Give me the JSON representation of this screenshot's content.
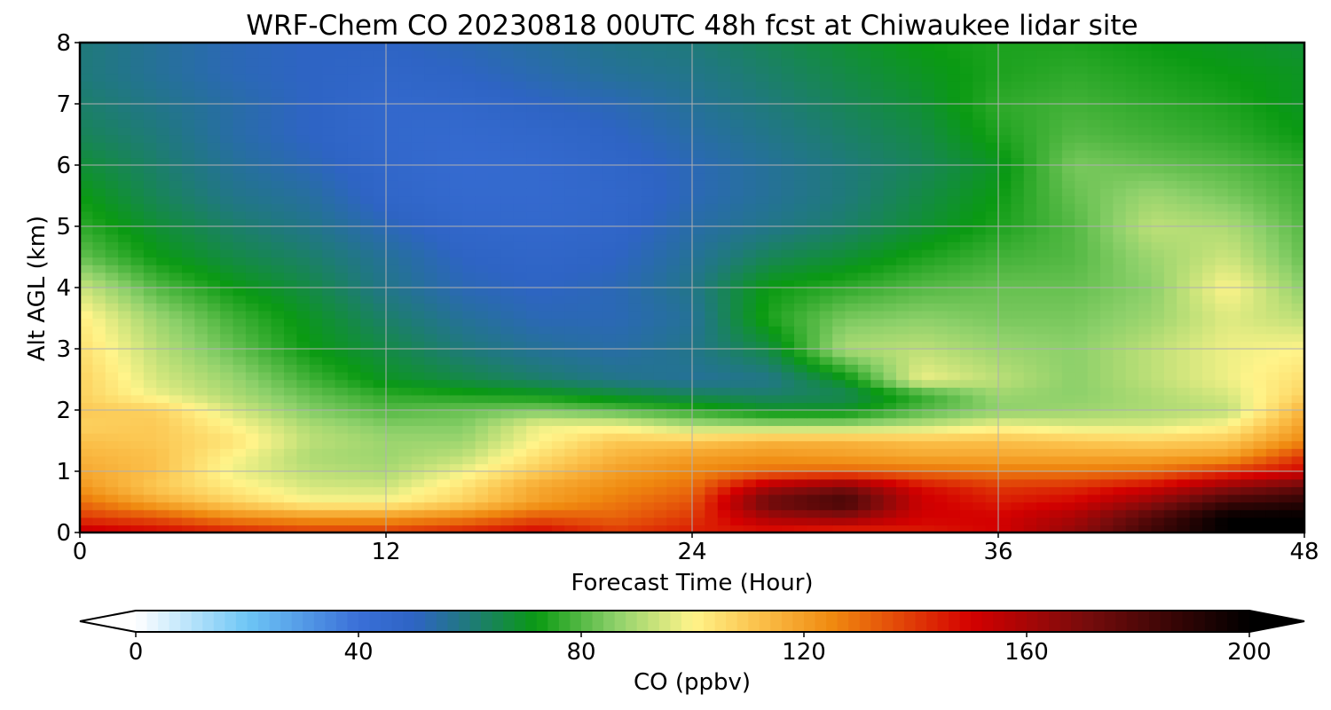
{
  "chart_data": {
    "type": "heatmap",
    "title": "WRF-Chem CO  20230818 00UTC 48h fcst at Chiwaukee lidar site",
    "xlabel": "Forecast Time (Hour)",
    "ylabel": "Alt AGL (km)",
    "xlim": [
      0,
      48
    ],
    "ylim": [
      0,
      8
    ],
    "xticks": [
      0,
      12,
      24,
      36,
      48
    ],
    "yticks": [
      0,
      1,
      2,
      3,
      4,
      5,
      6,
      7,
      8
    ],
    "grid": true,
    "colorbar": {
      "label": "CO  (ppbv)",
      "range": [
        0,
        200
      ],
      "ticks": [
        0,
        40,
        80,
        120,
        160,
        200
      ],
      "extend": "both",
      "orientation": "horizontal",
      "stops": [
        {
          "v": 0,
          "c": "#ffffff"
        },
        {
          "v": 20,
          "c": "#6ec6f5"
        },
        {
          "v": 40,
          "c": "#3a6fd8"
        },
        {
          "v": 50,
          "c": "#2e64c4"
        },
        {
          "v": 60,
          "c": "#1f7a7a"
        },
        {
          "v": 72,
          "c": "#0a9a12"
        },
        {
          "v": 86,
          "c": "#8cd06a"
        },
        {
          "v": 100,
          "c": "#fff48a"
        },
        {
          "v": 112,
          "c": "#fbc04a"
        },
        {
          "v": 125,
          "c": "#f08a10"
        },
        {
          "v": 150,
          "c": "#d40000"
        },
        {
          "v": 170,
          "c": "#7a0c0c"
        },
        {
          "v": 200,
          "c": "#000000"
        }
      ]
    },
    "x": [
      0,
      3,
      6,
      9,
      12,
      15,
      18,
      21,
      24,
      27,
      30,
      33,
      36,
      39,
      42,
      45,
      48
    ],
    "y": [
      0,
      0.25,
      0.5,
      0.75,
      1,
      1.25,
      1.5,
      1.75,
      2,
      2.25,
      2.5,
      3,
      3.5,
      4,
      4.5,
      5,
      5.5,
      6,
      6.5,
      7,
      7.5,
      8
    ],
    "z": [
      [
        155,
        150,
        145,
        140,
        140,
        145,
        150,
        140,
        145,
        145,
        140,
        145,
        150,
        165,
        185,
        200,
        200
      ],
      [
        140,
        135,
        125,
        122,
        122,
        126,
        135,
        132,
        140,
        160,
        165,
        150,
        150,
        160,
        180,
        200,
        200
      ],
      [
        130,
        118,
        108,
        100,
        100,
        108,
        120,
        128,
        135,
        175,
        185,
        152,
        145,
        150,
        165,
        185,
        190
      ],
      [
        122,
        110,
        102,
        95,
        94,
        104,
        118,
        124,
        130,
        160,
        170,
        148,
        140,
        142,
        150,
        165,
        175
      ],
      [
        118,
        112,
        98,
        92,
        90,
        98,
        110,
        120,
        125,
        130,
        132,
        130,
        128,
        128,
        130,
        140,
        150
      ],
      [
        115,
        112,
        100,
        90,
        88,
        92,
        105,
        115,
        120,
        122,
        120,
        118,
        118,
        118,
        118,
        120,
        140
      ],
      [
        112,
        110,
        104,
        92,
        88,
        88,
        100,
        110,
        110,
        115,
        115,
        112,
        112,
        110,
        108,
        110,
        125
      ],
      [
        108,
        110,
        100,
        90,
        85,
        85,
        98,
        98,
        90,
        88,
        88,
        92,
        98,
        95,
        95,
        100,
        120
      ],
      [
        110,
        108,
        95,
        85,
        80,
        82,
        84,
        80,
        76,
        70,
        70,
        80,
        86,
        88,
        90,
        92,
        115
      ],
      [
        108,
        98,
        90,
        82,
        76,
        74,
        72,
        68,
        64,
        62,
        64,
        76,
        88,
        86,
        90,
        95,
        108
      ],
      [
        108,
        95,
        88,
        78,
        70,
        66,
        62,
        58,
        56,
        58,
        70,
        98,
        92,
        86,
        92,
        98,
        105
      ],
      [
        105,
        92,
        82,
        72,
        66,
        60,
        56,
        54,
        58,
        66,
        90,
        92,
        88,
        86,
        92,
        98,
        100
      ],
      [
        102,
        88,
        78,
        70,
        62,
        56,
        52,
        52,
        56,
        74,
        84,
        86,
        84,
        84,
        88,
        96,
        92
      ],
      [
        94,
        80,
        72,
        66,
        58,
        52,
        50,
        52,
        58,
        72,
        76,
        80,
        82,
        82,
        86,
        100,
        86
      ],
      [
        82,
        72,
        66,
        62,
        56,
        50,
        48,
        50,
        56,
        64,
        68,
        74,
        78,
        80,
        88,
        94,
        82
      ],
      [
        76,
        68,
        62,
        58,
        52,
        47,
        46,
        48,
        54,
        58,
        62,
        68,
        74,
        80,
        92,
        90,
        80
      ],
      [
        72,
        64,
        58,
        55,
        48,
        45,
        45,
        47,
        52,
        56,
        60,
        66,
        72,
        82,
        88,
        84,
        78
      ],
      [
        68,
        62,
        56,
        52,
        47,
        44,
        45,
        48,
        52,
        56,
        60,
        64,
        70,
        84,
        82,
        80,
        76
      ],
      [
        64,
        60,
        54,
        50,
        46,
        45,
        47,
        50,
        54,
        58,
        62,
        66,
        74,
        80,
        78,
        76,
        72
      ],
      [
        62,
        58,
        54,
        50,
        46,
        47,
        50,
        52,
        56,
        60,
        64,
        68,
        76,
        78,
        76,
        74,
        70
      ],
      [
        60,
        56,
        52,
        50,
        48,
        50,
        53,
        56,
        58,
        62,
        66,
        70,
        74,
        76,
        74,
        72,
        70
      ],
      [
        60,
        56,
        52,
        50,
        50,
        52,
        55,
        58,
        60,
        64,
        68,
        72,
        74,
        74,
        72,
        70,
        68
      ]
    ]
  }
}
